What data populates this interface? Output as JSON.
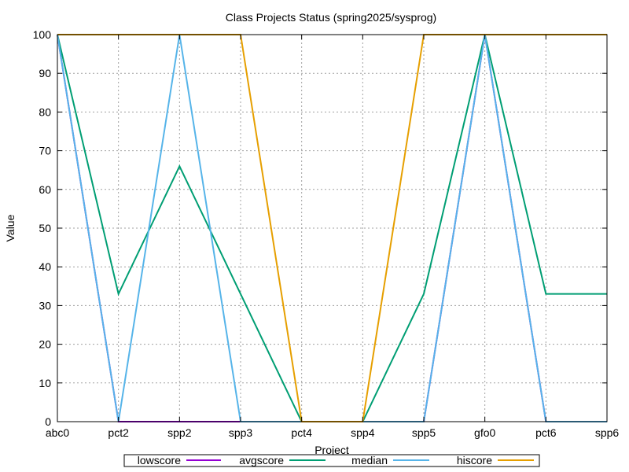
{
  "chart_data": {
    "type": "line",
    "title": "Class Projects Status (spring2025/sysprog)",
    "xlabel": "Project",
    "ylabel": "Value",
    "ylim": [
      0,
      100
    ],
    "yticks": [
      0,
      10,
      20,
      30,
      40,
      50,
      60,
      70,
      80,
      90,
      100
    ],
    "grid": true,
    "legend_position": "bottom-center",
    "categories": [
      "abc0",
      "pct2",
      "spp2",
      "spp3",
      "pct4",
      "spp4",
      "spp5",
      "gfo0",
      "pct6",
      "spp6"
    ],
    "series": [
      {
        "name": "lowscore",
        "color": "#9400d3",
        "values": [
          100,
          0,
          0,
          0,
          0,
          0,
          0,
          100,
          0,
          0
        ]
      },
      {
        "name": "avgscore",
        "color": "#009e73",
        "values": [
          100,
          33,
          66,
          33,
          0,
          0,
          33,
          100,
          33,
          33
        ]
      },
      {
        "name": "median",
        "color": "#56b4e9",
        "values": [
          100,
          0,
          100,
          0,
          0,
          0,
          0,
          100,
          0,
          0
        ]
      },
      {
        "name": "hiscore",
        "color": "#e69f00",
        "values": [
          100,
          100,
          100,
          100,
          0,
          0,
          100,
          100,
          100,
          100
        ]
      }
    ]
  }
}
